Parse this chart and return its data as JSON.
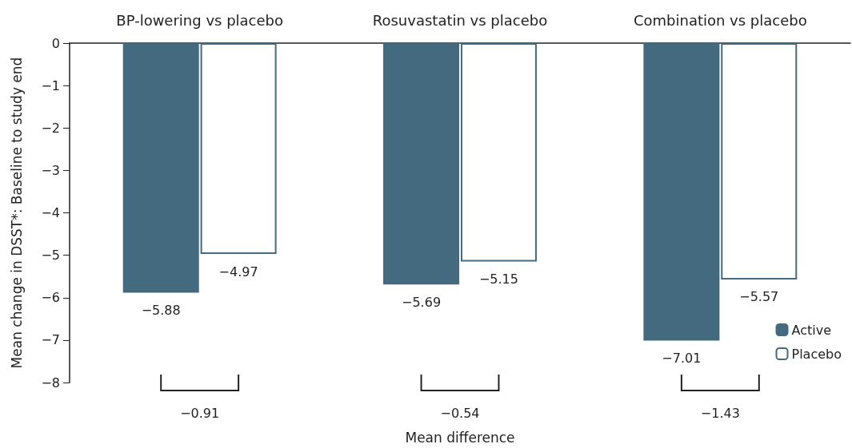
{
  "chart_data": {
    "type": "bar",
    "categories": [
      "BP-lowering vs placebo",
      "Rosuvastatin vs placebo",
      "Combination vs placebo"
    ],
    "series": [
      {
        "name": "Active",
        "color": "#436a7e",
        "values": [
          -5.88,
          -5.69,
          -7.01
        ],
        "value_labels": [
          "−5.88",
          "−5.69",
          "−7.01"
        ]
      },
      {
        "name": "Placebo",
        "color": "#ffffff",
        "values": [
          -4.97,
          -5.15,
          -5.57
        ],
        "value_labels": [
          "−4.97",
          "−5.15",
          "−5.57"
        ]
      }
    ],
    "ylabel": "Mean change in DSST*: Baseline to study end",
    "xlabel": "Mean difference",
    "ylim": [
      -8,
      0
    ],
    "yticks": [
      {
        "value": 0,
        "label": "0"
      },
      {
        "value": -1,
        "label": "−1"
      },
      {
        "value": -2,
        "label": "−2"
      },
      {
        "value": -3,
        "label": "−3"
      },
      {
        "value": -4,
        "label": "−4"
      },
      {
        "value": -5,
        "label": "−5"
      },
      {
        "value": -6,
        "label": "−6"
      },
      {
        "value": -7,
        "label": "−7"
      },
      {
        "value": -8,
        "label": "−8"
      }
    ],
    "annotations": [
      "−0.91",
      "−0.54",
      "−1.43"
    ],
    "legend": "bottom right",
    "grid": false
  }
}
